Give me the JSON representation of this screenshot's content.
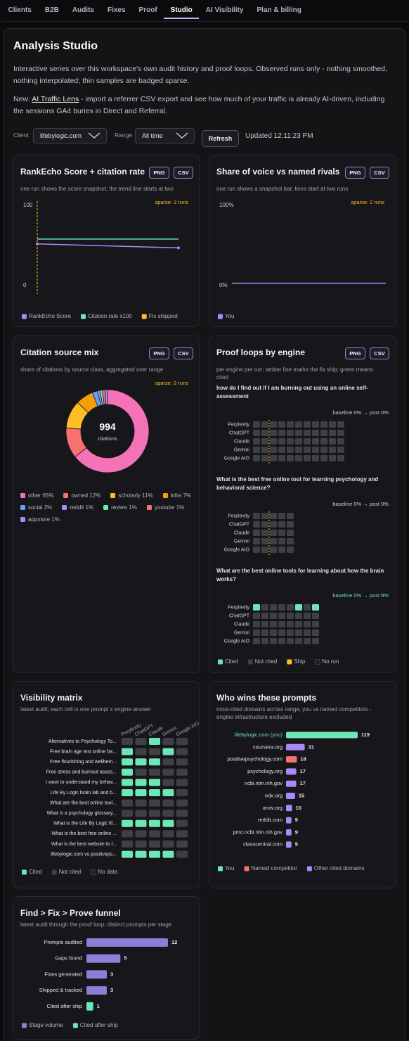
{
  "nav": {
    "tabs": [
      "Clients",
      "B2B",
      "Audits",
      "Fixes",
      "Proof",
      "Studio",
      "AI Visibility",
      "Plan & billing"
    ],
    "active": 5
  },
  "header": {
    "title": "Analysis Studio",
    "description": "Interactive series over this workspace's own audit history and proof loops. Observed runs only - nothing smoothed, nothing interpolated; thin samples are badged sparse.",
    "notice_prefix": "New:",
    "notice_link": "AI Traffic Lens",
    "notice_text": "- import a referrer CSV export and see how much of your traffic is already AI-driven, including the sessions GA4 buries in Direct and Referral."
  },
  "controls": {
    "client_label": "Client",
    "client": "lifebylogic.com",
    "range_label": "Range",
    "range": "All time",
    "refresh": "Refresh",
    "updated": "Updated 12:11:23 PM"
  },
  "chart_data": [
    {
      "type": "line",
      "title": "RankEcho Score + citation rate",
      "subtitle": "one run shows the score snapshot; the trend line starts at two",
      "exports": [
        "PNG",
        "CSV"
      ],
      "badge": "sparse: 2 runs",
      "categories": [
        null,
        null
      ],
      "ylim": [
        0,
        100
      ],
      "yticks": [
        0,
        100
      ],
      "series": [
        {
          "name": "RankEcho Score",
          "color": "#a78bfa",
          "values": [
            52,
            47
          ],
          "dots": true
        },
        {
          "name": "Citation rate x100",
          "color": "#6ee7b7",
          "values": [
            58,
            58
          ]
        }
      ],
      "markers": [
        {
          "name": "Fix shipped",
          "color": "#fbbf24",
          "index": 0
        }
      ]
    },
    {
      "type": "line",
      "title": "Share of voice vs named rivals",
      "subtitle": "one run shows a snapshot bar; lines start at two runs",
      "exports": [
        "PNG",
        "CSV"
      ],
      "badge": "sparse: 2 runs",
      "categories": [
        null,
        null
      ],
      "ylim": [
        0,
        100
      ],
      "yticks": [
        {
          "value": 0,
          "label": "0%"
        },
        {
          "value": 100,
          "label": "100%"
        }
      ],
      "series": [
        {
          "name": "You",
          "color": "#a78bfa",
          "values": [
            3,
            3
          ]
        }
      ]
    },
    {
      "type": "pie",
      "title": "Citation source mix",
      "subtitle": "share of citations by source class, aggregated over range",
      "exports": [
        "PNG",
        "CSV"
      ],
      "badge": "sparse: 2 runs",
      "donut": true,
      "center_value": 994,
      "center_label": "citations",
      "categories": [
        "other",
        "owned",
        "scholarly",
        "infra",
        "social",
        "reddit",
        "review",
        "youtube",
        "appstore"
      ],
      "values": [
        65,
        12,
        11,
        7,
        2,
        1,
        1,
        1,
        1
      ],
      "value_labels": [
        "65%",
        "12%",
        "11%",
        "7%",
        "2%",
        "1%",
        "1%",
        "1%",
        "1%"
      ],
      "colors": [
        "#f472b6",
        "#f87171",
        "#fbbf24",
        "#f59e0b",
        "#60a5fa",
        "#a78bfa",
        "#6ee7b7",
        "#f87171",
        "#a78bfa"
      ]
    },
    {
      "type": "heatmap",
      "title": "Proof loops by engine",
      "subtitle": "per engine per run; amber line marks the fix ship; green means cited",
      "exports": [
        "PNG",
        "CSV"
      ],
      "engines": [
        "Perplexity",
        "ChatGPT",
        "Claude",
        "Gemini",
        "Google AIO"
      ],
      "prompts": [
        {
          "prompt": "how do I find out if I am burning out using an online self-assessment",
          "status": "baseline 0% → post 0%",
          "ship_index": 2,
          "cells": [
            [
              0,
              0,
              0,
              0,
              0,
              0,
              0,
              0,
              0,
              0,
              0
            ],
            [
              0,
              0,
              0,
              0,
              0,
              0,
              0,
              0,
              0,
              0,
              0
            ],
            [
              0,
              0,
              0,
              0,
              0,
              0,
              0,
              0,
              0,
              0,
              0
            ],
            [
              0,
              0,
              0,
              0,
              0,
              0,
              0,
              0,
              0,
              0,
              0
            ],
            [
              0,
              0,
              0,
              0,
              0,
              0,
              0,
              0,
              0,
              0,
              0
            ]
          ]
        },
        {
          "prompt": "What is the best free online tool for learning psychology and behavioral science?",
          "status": "baseline 0% → post 0%",
          "ship_index": 2,
          "cells": [
            [
              0,
              0,
              0,
              0,
              0
            ],
            [
              0,
              0,
              0,
              0,
              0
            ],
            [
              0,
              0,
              0,
              0,
              0
            ],
            [
              0,
              0,
              0,
              0,
              0
            ],
            [
              0,
              0,
              0,
              0,
              0
            ]
          ]
        },
        {
          "prompt": "What are the best online tools for learning about how the brain works?",
          "status": "baseline 0% → post 9%",
          "cells": [
            [
              1,
              0,
              0,
              0,
              0,
              1,
              0,
              1
            ],
            [
              0,
              0,
              0,
              0,
              0,
              0,
              0,
              0
            ],
            [
              0,
              0,
              0,
              0,
              0,
              0,
              0,
              0
            ],
            [
              0,
              0,
              0,
              0,
              0,
              0,
              0,
              0
            ],
            [
              0,
              0,
              0,
              0,
              0,
              0,
              0,
              0
            ]
          ]
        }
      ],
      "legend": [
        {
          "name": "Cited",
          "color": "#6ee7b7"
        },
        {
          "name": "Not cited",
          "color": "#3f3f46"
        },
        {
          "name": "Ship",
          "color": "#fbbf24"
        },
        {
          "name": "No run",
          "color": "#1f1f24"
        }
      ]
    },
    {
      "type": "matrix",
      "title": "Visibility matrix",
      "subtitle": "latest audit; each cell is one prompt x engine answer",
      "columns": [
        "Perplexity",
        "ChatGPT",
        "Claude",
        "Gemini",
        "Google AIO"
      ],
      "rows": [
        "Alternatives to Psychology To...",
        "Free brain age test online ba...",
        "Free flourishing and wellbein...",
        "Free stress and burnout asses...",
        "I want to understand my behav...",
        "Life By Logic brain lab and b...",
        "What are the best online tool...",
        "What is a psychology glossary...",
        "What is the Life By Logic lif...",
        "What is the best free online ...",
        "What is the best website to l...",
        "lifebylogic.com vs positiveps..."
      ],
      "cells": [
        [
          0,
          0,
          1,
          0,
          0
        ],
        [
          1,
          0,
          0,
          1,
          0
        ],
        [
          1,
          1,
          1,
          0,
          0
        ],
        [
          1,
          0,
          0,
          0,
          0
        ],
        [
          1,
          1,
          1,
          0,
          0
        ],
        [
          1,
          1,
          1,
          1,
          0
        ],
        [
          0,
          0,
          0,
          0,
          0
        ],
        [
          0,
          0,
          0,
          0,
          0
        ],
        [
          1,
          1,
          1,
          1,
          0
        ],
        [
          0,
          0,
          0,
          0,
          0
        ],
        [
          0,
          0,
          0,
          0,
          0
        ],
        [
          1,
          1,
          1,
          1,
          0
        ]
      ],
      "legend": [
        {
          "name": "Cited",
          "color": "#6ee7b7"
        },
        {
          "name": "Not cited",
          "color": "#3f3f46"
        },
        {
          "name": "No data",
          "color": "#1f1f24"
        }
      ]
    },
    {
      "type": "hbar",
      "title": "Who wins these prompts",
      "subtitle": "most-cited domains across range; you vs named competitors - engine infrastructure excluded",
      "categories": [
        "lifebylogic.com (you)",
        "coursera.org",
        "positivepsychology.com",
        "psychology.org",
        "ncbi.nlm.nih.gov",
        "edx.org",
        "arxiv.org",
        "reddit.com",
        "pmc.ncbi.nlm.nih.gov",
        "classcentral.com"
      ],
      "values": [
        119,
        31,
        18,
        17,
        17,
        15,
        10,
        9,
        9,
        9
      ],
      "colors": [
        "#6ee7b7",
        "#a78bfa",
        "#f87171",
        "#a78bfa",
        "#a78bfa",
        "#a78bfa",
        "#a78bfa",
        "#a78bfa",
        "#a78bfa",
        "#a78bfa"
      ],
      "legend": [
        {
          "name": "You",
          "color": "#6ee7b7"
        },
        {
          "name": "Named competitor",
          "color": "#f87171"
        },
        {
          "name": "Other cited domains",
          "color": "#a78bfa"
        }
      ]
    },
    {
      "type": "hbar",
      "title": "Find > Fix > Prove funnel",
      "subtitle": "latest audit through the proof loop; distinct prompts per stage",
      "categories": [
        "Prompts audited",
        "Gaps found",
        "Fixes generated",
        "Shipped & tracked",
        "Cited after ship"
      ],
      "values": [
        12,
        5,
        3,
        3,
        1
      ],
      "colors": [
        "#8b7fd8",
        "#8b7fd8",
        "#8b7fd8",
        "#8b7fd8",
        "#6ee7b7"
      ],
      "legend": [
        {
          "name": "Stage volume",
          "color": "#8b7fd8"
        },
        {
          "name": "Cited after ship",
          "color": "#6ee7b7"
        }
      ]
    }
  ]
}
